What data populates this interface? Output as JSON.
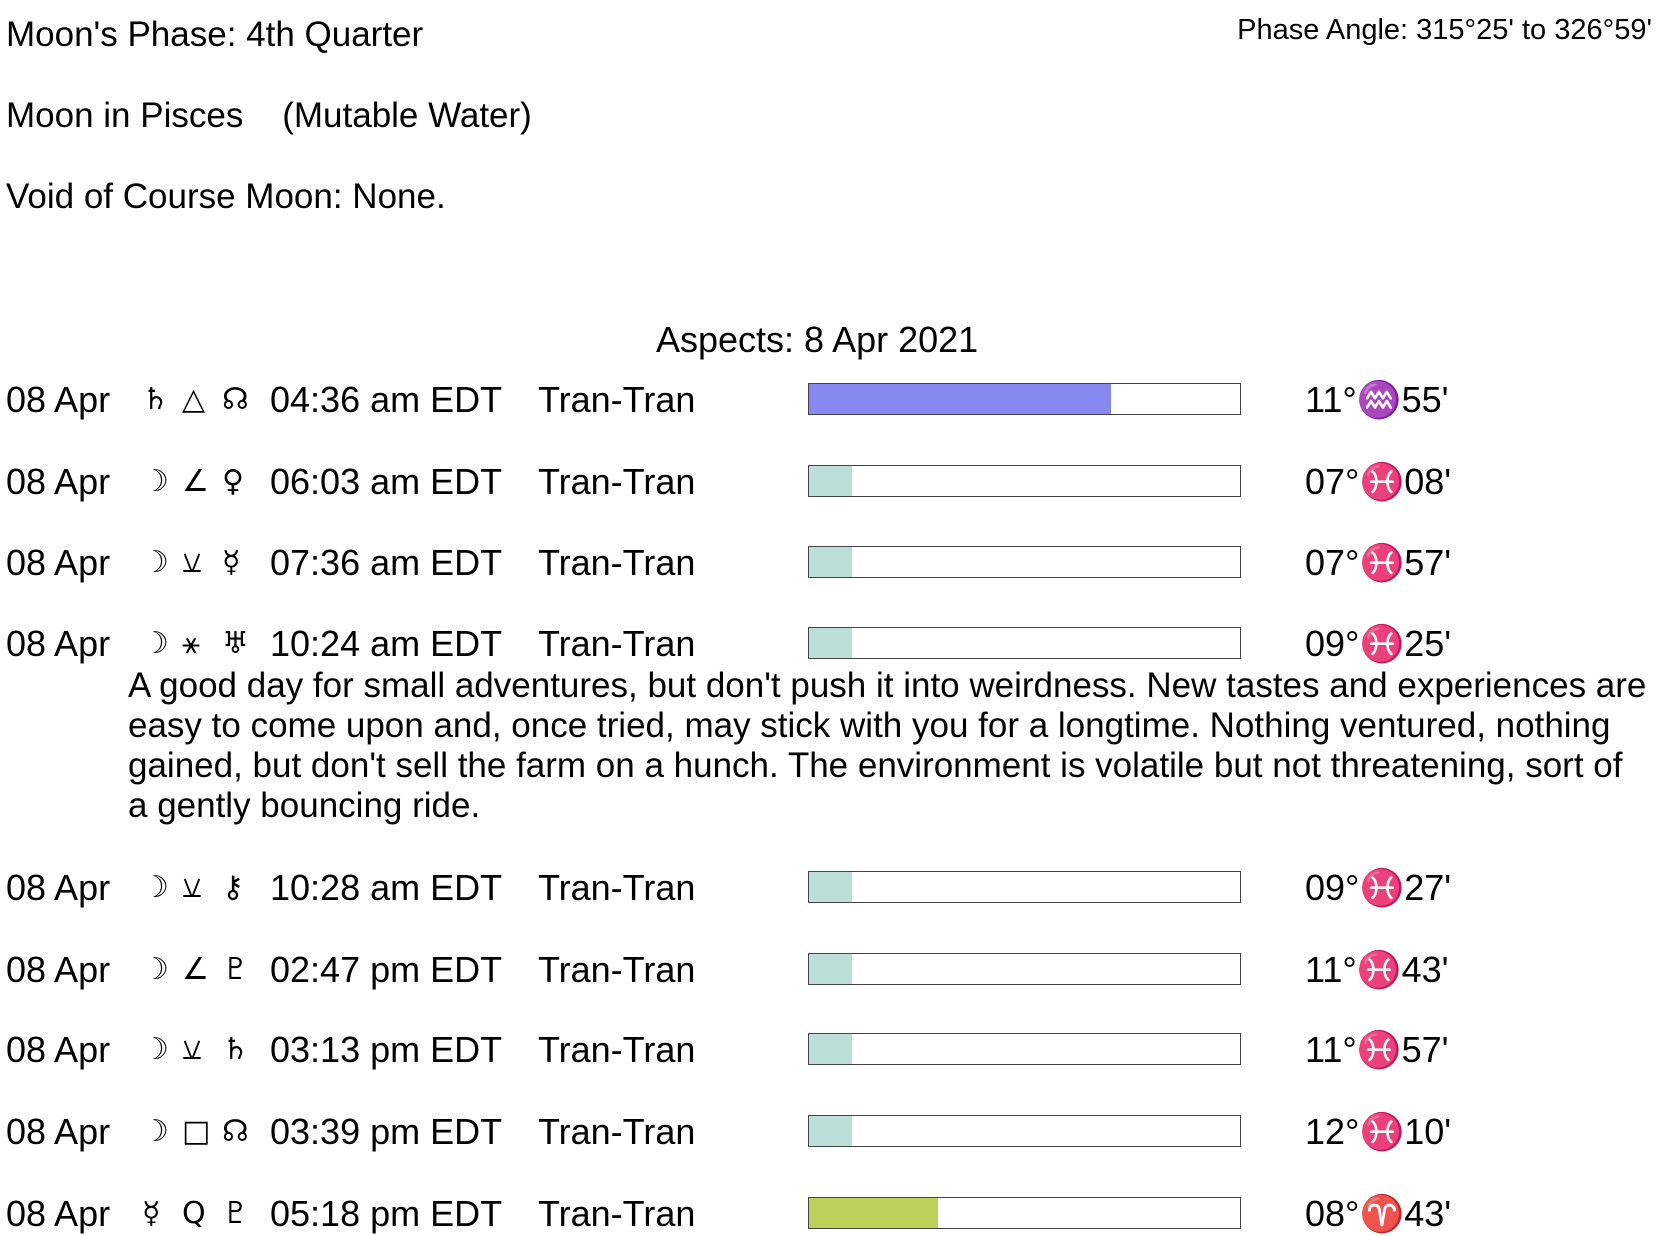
{
  "header": {
    "phase_label": "Moon's Phase:  4th Quarter",
    "phase_angle": "Phase Angle:  315°25' to 326°59'",
    "moon_sign": "Moon in Pisces    (Mutable Water)",
    "void_of_course": "Void of Course Moon: None."
  },
  "aspects_title": "Aspects: 8 Apr 2021",
  "colors": {
    "blue": "#8888f2",
    "teal": "#bbded8",
    "green": "#bdd05a"
  },
  "aspects": [
    {
      "date": "08 Apr",
      "p1": "♄",
      "p1_name": "saturn",
      "asp": "△",
      "asp_name": "trine",
      "p2": "☊",
      "p2_name": "north-node",
      "time": "04:36 am EDT",
      "type": "Tran-Tran",
      "strength": 0.7,
      "color": "#8888f2",
      "position": "11°♒55'"
    },
    {
      "date": "08 Apr",
      "p1": "☽",
      "p1_name": "moon",
      "asp": "∠",
      "asp_name": "semisquare",
      "p2": "♀",
      "p2_name": "venus",
      "time": "06:03 am EDT",
      "type": "Tran-Tran",
      "strength": 0.1,
      "color": "#bbded8",
      "position": "07°♓08'"
    },
    {
      "date": "08 Apr",
      "p1": "☽",
      "p1_name": "moon",
      "asp": "⚺",
      "asp_name": "semisextile",
      "p2": "☿",
      "p2_name": "mercury",
      "time": "07:36 am EDT",
      "type": "Tran-Tran",
      "strength": 0.1,
      "color": "#bbded8",
      "position": "07°♓57'"
    },
    {
      "date": "08 Apr",
      "p1": "☽",
      "p1_name": "moon",
      "asp": "⚹",
      "asp_name": "sextile",
      "p2": "♅",
      "p2_name": "uranus",
      "time": "10:24 am EDT",
      "type": "Tran-Tran",
      "strength": 0.1,
      "color": "#bbded8",
      "position": "09°♓25'"
    },
    {
      "date": "08 Apr",
      "p1": "☽",
      "p1_name": "moon",
      "asp": "⚺",
      "asp_name": "semisextile",
      "p2": "⚷",
      "p2_name": "chiron",
      "time": "10:28 am EDT",
      "type": "Tran-Tran",
      "strength": 0.1,
      "color": "#bbded8",
      "position": "09°♓27'"
    },
    {
      "date": "08 Apr",
      "p1": "☽",
      "p1_name": "moon",
      "asp": "∠",
      "asp_name": "semisquare",
      "p2": "♇",
      "p2_name": "pluto",
      "time": "02:47 pm EDT",
      "type": "Tran-Tran",
      "strength": 0.1,
      "color": "#bbded8",
      "position": "11°♓43'"
    },
    {
      "date": "08 Apr",
      "p1": "☽",
      "p1_name": "moon",
      "asp": "⚺",
      "asp_name": "semisextile",
      "p2": "♄",
      "p2_name": "saturn",
      "time": "03:13 pm EDT",
      "type": "Tran-Tran",
      "strength": 0.1,
      "color": "#bbded8",
      "position": "11°♓57'"
    },
    {
      "date": "08 Apr",
      "p1": "☽",
      "p1_name": "moon",
      "asp": "□",
      "asp_name": "square",
      "p2": "☊",
      "p2_name": "north-node",
      "time": "03:39 pm EDT",
      "type": "Tran-Tran",
      "strength": 0.1,
      "color": "#bbded8",
      "position": "12°♓10'"
    },
    {
      "date": "08 Apr",
      "p1": "☿",
      "p1_name": "mercury",
      "asp": "Q",
      "asp_name": "quintile",
      "p2": "♇",
      "p2_name": "pluto",
      "time": "05:18 pm EDT",
      "type": "Tran-Tran",
      "strength": 0.3,
      "color": "#bdd05a",
      "position": "08°♈43'"
    }
  ],
  "description": "A good day for small adventures, but don't push it into weirdness. New tastes and experiences are easy to come upon and, once tried, may stick with you for a longtime. Nothing ventured, nothing gained, but don't sell the farm on a hunch. The environment is volatile but not threatening, sort of a gently bouncing ride."
}
